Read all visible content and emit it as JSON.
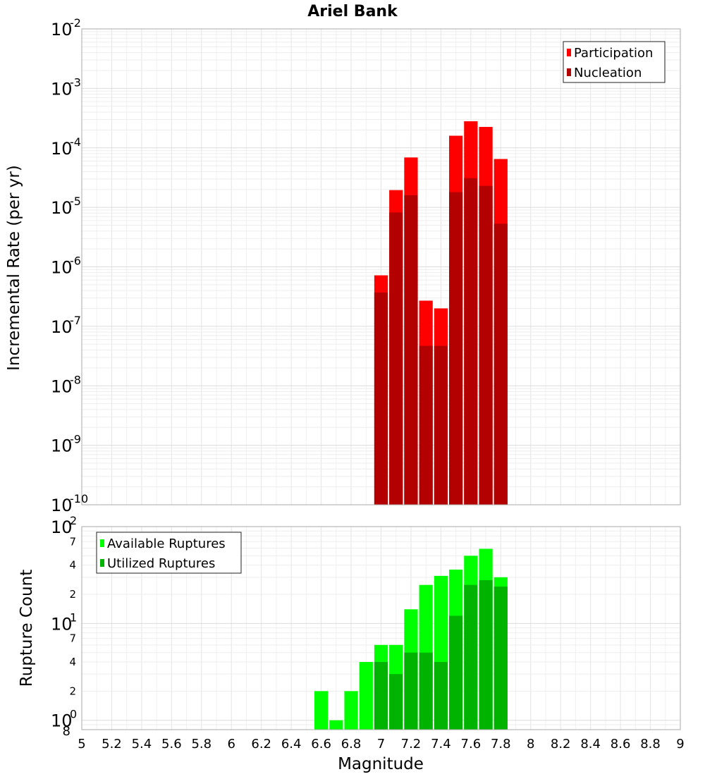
{
  "chart_data": [
    {
      "type": "bar",
      "title": "Ariel Bank",
      "ylabel": "Incremental Rate (per yr)",
      "yscale": "log",
      "ylim": [
        1e-10,
        0.01
      ],
      "xlim": [
        5,
        9
      ],
      "grid": true,
      "legend_placement": "top-right",
      "y_ticks": [
        {
          "base": "10",
          "exp": "-2",
          "value": 0.01
        },
        {
          "base": "10",
          "exp": "-3",
          "value": 0.001
        },
        {
          "base": "10",
          "exp": "-4",
          "value": 0.0001
        },
        {
          "base": "10",
          "exp": "-5",
          "value": 1e-05
        },
        {
          "base": "10",
          "exp": "-6",
          "value": 1e-06
        },
        {
          "base": "10",
          "exp": "-7",
          "value": 1e-07
        },
        {
          "base": "10",
          "exp": "-8",
          "value": 1e-08
        },
        {
          "base": "10",
          "exp": "-9",
          "value": 1e-09
        },
        {
          "base": "10",
          "exp": "-10",
          "value": 1e-10
        }
      ],
      "x": [
        7.0,
        7.1,
        7.2,
        7.3,
        7.4,
        7.5,
        7.6,
        7.7,
        7.8
      ],
      "series": [
        {
          "name": "Participation",
          "color": "#ff0000",
          "values": [
            7.2e-07,
            1.95e-05,
            6.9e-05,
            2.7e-07,
            2e-07,
            0.00016,
            0.00028,
            0.000225,
            6.5e-05
          ]
        },
        {
          "name": "Nucleation",
          "color": "#b30000",
          "values": [
            3.7e-07,
            8.2e-06,
            1.6e-05,
            4.7e-08,
            4.7e-08,
            1.8e-05,
            3.1e-05,
            2.3e-05,
            5.3e-06
          ]
        }
      ]
    },
    {
      "type": "bar",
      "xlabel": "Magnitude",
      "ylabel": "Rupture Count",
      "yscale": "log",
      "ylim": [
        0.8,
        100
      ],
      "xlim": [
        5,
        9
      ],
      "grid": true,
      "legend_placement": "top-left",
      "y_ticks": [
        {
          "base": "10",
          "exp": "2",
          "value": 100
        },
        {
          "base": "10",
          "exp": "1",
          "value": 10
        },
        {
          "base": "10",
          "exp": "0",
          "value": 1
        }
      ],
      "y_minor_ticks": [
        {
          "label": "7",
          "value": 70
        },
        {
          "label": "4",
          "value": 40
        },
        {
          "label": "2",
          "value": 20
        },
        {
          "label": "7",
          "value": 7
        },
        {
          "label": "4",
          "value": 4
        },
        {
          "label": "2",
          "value": 2
        },
        {
          "label": "8",
          "value": 0.8
        }
      ],
      "x": [
        6.6,
        6.7,
        6.8,
        6.9,
        7.0,
        7.1,
        7.2,
        7.3,
        7.4,
        7.5,
        7.6,
        7.7,
        7.8
      ],
      "series": [
        {
          "name": "Available Ruptures",
          "color": "#00ff00",
          "values": [
            2,
            1,
            2,
            4,
            6,
            6,
            14,
            25,
            31,
            36,
            50,
            59,
            30
          ]
        },
        {
          "name": "Utilized Ruptures",
          "color": "#00b300",
          "values": [
            0,
            0,
            0,
            0,
            4,
            3,
            5,
            5,
            4,
            12,
            25,
            28,
            24
          ]
        }
      ],
      "x_ticks": [
        "5",
        "5.2",
        "5.4",
        "5.6",
        "5.8",
        "6",
        "6.2",
        "6.4",
        "6.6",
        "6.8",
        "7",
        "7.2",
        "7.4",
        "7.6",
        "7.8",
        "8",
        "8.2",
        "8.4",
        "8.6",
        "8.8",
        "9"
      ],
      "x_tick_values": [
        5,
        5.2,
        5.4,
        5.6,
        5.8,
        6,
        6.2,
        6.4,
        6.6,
        6.8,
        7,
        7.2,
        7.4,
        7.6,
        7.8,
        8,
        8.2,
        8.4,
        8.6,
        8.8,
        9
      ]
    }
  ]
}
